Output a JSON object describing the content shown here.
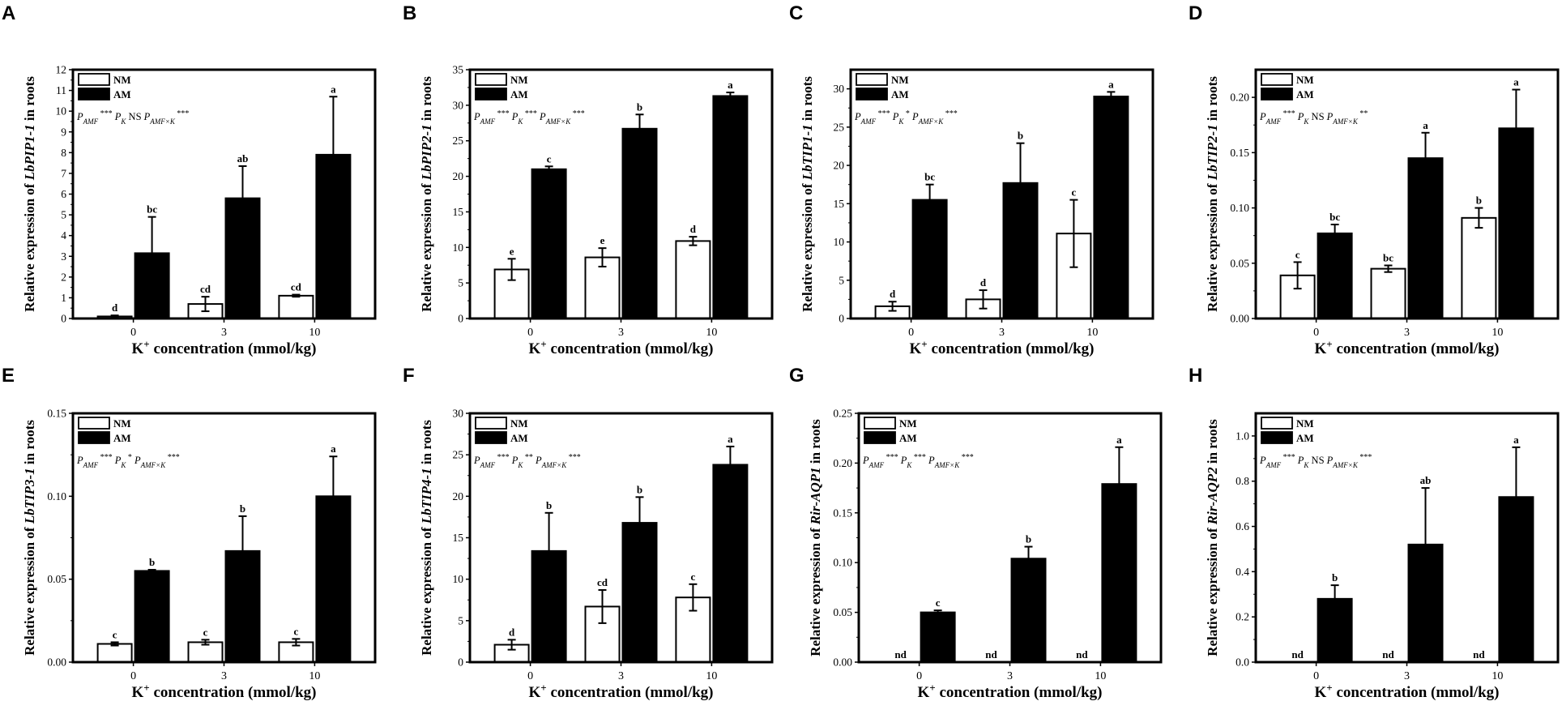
{
  "colors": {
    "nm_fill": "#ffffff",
    "am_fill": "#000000",
    "axis": "#000000"
  },
  "chart_data": [
    {
      "type": "bar",
      "panel": "A",
      "gene": "LbPIP1-1",
      "ylabel": {
        "prefix": "Relative expression of",
        "suffix": "in roots"
      },
      "xlabel": "K+ concentration (mmol/kg)",
      "categories": [
        "0",
        "3",
        "10"
      ],
      "ylim": [
        0,
        12
      ],
      "yticks": [
        0,
        1,
        2,
        3,
        4,
        5,
        6,
        7,
        8,
        9,
        10,
        11,
        12
      ],
      "tick_decimals": 0,
      "legend": [
        "NM",
        "AM"
      ],
      "significance": [
        [
          "AMF",
          "***"
        ],
        [
          "K",
          "NS"
        ],
        [
          "AMF×K",
          "***"
        ]
      ],
      "series": [
        {
          "name": "NM",
          "values": [
            0.1,
            0.7,
            1.1
          ],
          "errors": [
            0.05,
            0.35,
            0.05
          ],
          "letters": [
            "d",
            "cd",
            "cd"
          ]
        },
        {
          "name": "AM",
          "values": [
            3.15,
            5.8,
            7.9
          ],
          "errors": [
            1.75,
            1.55,
            2.8
          ],
          "letters": [
            "bc",
            "ab",
            "a"
          ]
        }
      ]
    },
    {
      "type": "bar",
      "panel": "B",
      "gene": "LbPIP2-1",
      "ylabel": {
        "prefix": "Relative expression of",
        "suffix": "in roots"
      },
      "xlabel": "K+ concentration (mmol/kg)",
      "categories": [
        "0",
        "3",
        "10"
      ],
      "ylim": [
        0,
        35
      ],
      "yticks": [
        0,
        5,
        10,
        15,
        20,
        25,
        30,
        35
      ],
      "tick_decimals": 0,
      "legend": [
        "NM",
        "AM"
      ],
      "significance": [
        [
          "AMF",
          "***"
        ],
        [
          "K",
          "***"
        ],
        [
          "AMF×K",
          "***"
        ]
      ],
      "series": [
        {
          "name": "NM",
          "values": [
            6.9,
            8.6,
            10.9
          ],
          "errors": [
            1.5,
            1.3,
            0.6
          ],
          "letters": [
            "e",
            "e",
            "d"
          ]
        },
        {
          "name": "AM",
          "values": [
            21.0,
            26.7,
            31.3
          ],
          "errors": [
            0.4,
            2.0,
            0.5
          ],
          "letters": [
            "c",
            "b",
            "a"
          ]
        }
      ]
    },
    {
      "type": "bar",
      "panel": "C",
      "gene": "LbTIP1-1",
      "ylabel": {
        "prefix": "Relative expression of",
        "suffix": "in roots"
      },
      "xlabel": "K+ concentration (mmol/kg)",
      "categories": [
        "0",
        "3",
        "10"
      ],
      "ylim": [
        0,
        32.5
      ],
      "yticks": [
        0,
        5,
        10,
        15,
        20,
        25,
        30
      ],
      "tick_decimals": 0,
      "legend": [
        "NM",
        "AM"
      ],
      "significance": [
        [
          "AMF",
          "***"
        ],
        [
          "K",
          "*"
        ],
        [
          "AMF×K",
          "***"
        ]
      ],
      "series": [
        {
          "name": "NM",
          "values": [
            1.6,
            2.5,
            11.1
          ],
          "errors": [
            0.6,
            1.2,
            4.4
          ],
          "letters": [
            "d",
            "d",
            "c"
          ]
        },
        {
          "name": "AM",
          "values": [
            15.5,
            17.7,
            29.0
          ],
          "errors": [
            2.0,
            5.2,
            0.6
          ],
          "letters": [
            "bc",
            "b",
            "a"
          ]
        }
      ]
    },
    {
      "type": "bar",
      "panel": "D",
      "gene": "LbTIP2-1",
      "ylabel": {
        "prefix": "Relative expression of",
        "suffix": "in roots"
      },
      "xlabel": "K+ concentration (mmol/kg)",
      "categories": [
        "0",
        "3",
        "10"
      ],
      "ylim": [
        0,
        0.225
      ],
      "yticks": [
        0,
        0.05,
        0.1,
        0.15,
        0.2
      ],
      "tick_decimals": 2,
      "legend": [
        "NM",
        "AM"
      ],
      "significance": [
        [
          "AMF",
          "***"
        ],
        [
          "K",
          "NS"
        ],
        [
          "AMF×K",
          "**"
        ]
      ],
      "series": [
        {
          "name": "NM",
          "values": [
            0.039,
            0.045,
            0.091
          ],
          "errors": [
            0.012,
            0.003,
            0.009
          ],
          "letters": [
            "c",
            "bc",
            "b"
          ]
        },
        {
          "name": "AM",
          "values": [
            0.077,
            0.145,
            0.172
          ],
          "errors": [
            0.008,
            0.023,
            0.035
          ],
          "letters": [
            "bc",
            "a",
            "a"
          ]
        }
      ]
    },
    {
      "type": "bar",
      "panel": "E",
      "gene": "LbTIP3-1",
      "ylabel": {
        "prefix": "Relative expression of",
        "suffix": "in roots"
      },
      "xlabel": "K+ concentration (mmol/kg)",
      "categories": [
        "0",
        "3",
        "10"
      ],
      "ylim": [
        0,
        0.15
      ],
      "yticks": [
        0,
        0.05,
        0.1,
        0.15
      ],
      "tick_decimals": 2,
      "legend": [
        "NM",
        "AM"
      ],
      "significance": [
        [
          "AMF",
          "***"
        ],
        [
          "K",
          "*"
        ],
        [
          "AMF×K",
          "***"
        ]
      ],
      "series": [
        {
          "name": "NM",
          "values": [
            0.011,
            0.012,
            0.012
          ],
          "errors": [
            0.001,
            0.0015,
            0.002
          ],
          "letters": [
            "c",
            "c",
            "c"
          ]
        },
        {
          "name": "AM",
          "values": [
            0.055,
            0.067,
            0.1
          ],
          "errors": [
            0.0007,
            0.021,
            0.024
          ],
          "letters": [
            "b",
            "b",
            "a"
          ]
        }
      ]
    },
    {
      "type": "bar",
      "panel": "F",
      "gene": "LbTIP4-1",
      "ylabel": {
        "prefix": "Relative expression of",
        "suffix": "in roots"
      },
      "xlabel": "K+ concentration (mmol/kg)",
      "categories": [
        "0",
        "3",
        "10"
      ],
      "ylim": [
        0,
        30
      ],
      "yticks": [
        0,
        5,
        10,
        15,
        20,
        25,
        30
      ],
      "tick_decimals": 0,
      "legend": [
        "NM",
        "AM"
      ],
      "significance": [
        [
          "AMF",
          "***"
        ],
        [
          "K",
          "**"
        ],
        [
          "AMF×K",
          "***"
        ]
      ],
      "series": [
        {
          "name": "NM",
          "values": [
            2.1,
            6.7,
            7.8
          ],
          "errors": [
            0.6,
            2.0,
            1.6
          ],
          "letters": [
            "d",
            "cd",
            "c"
          ]
        },
        {
          "name": "AM",
          "values": [
            13.4,
            16.8,
            23.8
          ],
          "errors": [
            4.6,
            3.1,
            2.2
          ],
          "letters": [
            "b",
            "b",
            "a"
          ]
        }
      ]
    },
    {
      "type": "bar",
      "panel": "G",
      "gene": "Rir-AQP1",
      "ylabel": {
        "prefix": "Relative expression of",
        "suffix": "in roots"
      },
      "xlabel": "K+ concentration (mmol/kg)",
      "categories": [
        "0",
        "3",
        "10"
      ],
      "ylim": [
        0,
        0.25
      ],
      "yticks": [
        0,
        0.05,
        0.1,
        0.15,
        0.2,
        0.25
      ],
      "tick_decimals": 2,
      "legend": [
        "NM",
        "AM"
      ],
      "significance": [
        [
          "AMF",
          "***"
        ],
        [
          "K",
          "***"
        ],
        [
          "AMF×K",
          "***"
        ]
      ],
      "series": [
        {
          "name": "NM",
          "values": [
            0,
            0,
            0
          ],
          "errors": [
            0,
            0,
            0
          ],
          "letters": [
            "nd",
            "nd",
            "nd"
          ]
        },
        {
          "name": "AM",
          "values": [
            0.05,
            0.104,
            0.179
          ],
          "errors": [
            0.002,
            0.012,
            0.037
          ],
          "letters": [
            "c",
            "b",
            "a"
          ]
        }
      ]
    },
    {
      "type": "bar",
      "panel": "H",
      "gene": "Rir-AQP2",
      "ylabel": {
        "prefix": "Relative expression of",
        "suffix": "in roots"
      },
      "xlabel": "K+ concentration (mmol/kg)",
      "categories": [
        "0",
        "3",
        "10"
      ],
      "ylim": [
        0,
        1.1
      ],
      "yticks": [
        0,
        0.2,
        0.4,
        0.6,
        0.8,
        1.0
      ],
      "tick_decimals": 1,
      "legend": [
        "NM",
        "AM"
      ],
      "significance": [
        [
          "AMF",
          "***"
        ],
        [
          "K",
          "NS"
        ],
        [
          "AMF×K",
          "***"
        ]
      ],
      "series": [
        {
          "name": "NM",
          "values": [
            0,
            0,
            0
          ],
          "errors": [
            0,
            0,
            0
          ],
          "letters": [
            "nd",
            "nd",
            "nd"
          ]
        },
        {
          "name": "AM",
          "values": [
            0.28,
            0.52,
            0.73
          ],
          "errors": [
            0.06,
            0.25,
            0.22
          ],
          "letters": [
            "b",
            "ab",
            "a"
          ]
        }
      ]
    }
  ]
}
